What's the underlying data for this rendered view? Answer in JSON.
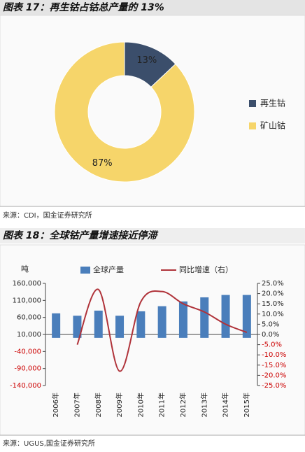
{
  "chart_data": [
    {
      "type": "donut",
      "title": "图表 17：再生钴占钴总产量的 13%",
      "source": "来源：CDI，国金证券研究所",
      "categories": [
        "再生钴",
        "矿山钴"
      ],
      "values": [
        13,
        87
      ],
      "value_labels": [
        "13%",
        "87%"
      ],
      "colors": [
        "#3b4e6b",
        "#f6d56a"
      ],
      "legend": "right"
    },
    {
      "type": "bar",
      "title": "图表 18：全球钴产量增速接近停滞",
      "source": "来源：UGUS,国金证券研究所",
      "ylabel": "吨",
      "categories": [
        "2006年",
        "2007年",
        "2008年",
        "2009年",
        "2010年",
        "2011年",
        "2012年",
        "2013年",
        "2014年",
        "2015年"
      ],
      "series": [
        {
          "name": "全球产量",
          "type": "bar",
          "color": "#4a7ebb",
          "values": [
            72000,
            65000,
            80000,
            65000,
            78000,
            93000,
            107000,
            119000,
            126000,
            126000
          ]
        },
        {
          "name": "同比增速（右）",
          "type": "line",
          "axis": "y2",
          "color": "#b0333a",
          "values": [
            null,
            -5,
            22,
            -18,
            16,
            21,
            15,
            11,
            5,
            1
          ]
        }
      ],
      "ylim": [
        -140000,
        160000
      ],
      "yticks": [
        {
          "value": -140000,
          "label": "-140,000"
        },
        {
          "value": -90000,
          "label": "-90,000"
        },
        {
          "value": -40000,
          "label": "-40,000"
        },
        {
          "value": 10000,
          "label": "10,000"
        },
        {
          "value": 60000,
          "label": "60,000"
        },
        {
          "value": 110000,
          "label": "110,000"
        },
        {
          "value": 160000,
          "label": "160,000"
        }
      ],
      "y2lim": [
        -25,
        25
      ],
      "y2ticks": [
        {
          "value": 25,
          "label": "25.0%"
        },
        {
          "value": 20,
          "label": "20.0%"
        },
        {
          "value": 15,
          "label": "15.0%"
        },
        {
          "value": 10,
          "label": "10.0%"
        },
        {
          "value": 5,
          "label": "5.0%"
        },
        {
          "value": 0,
          "label": "0.0%"
        },
        {
          "value": -5,
          "label": "-5.0%"
        },
        {
          "value": -10,
          "label": "-10.0%"
        },
        {
          "value": -15,
          "label": "-15.0%"
        },
        {
          "value": -20,
          "label": "-20.0%"
        },
        {
          "value": -25,
          "label": "-25.0%"
        }
      ],
      "legend": "top"
    }
  ]
}
